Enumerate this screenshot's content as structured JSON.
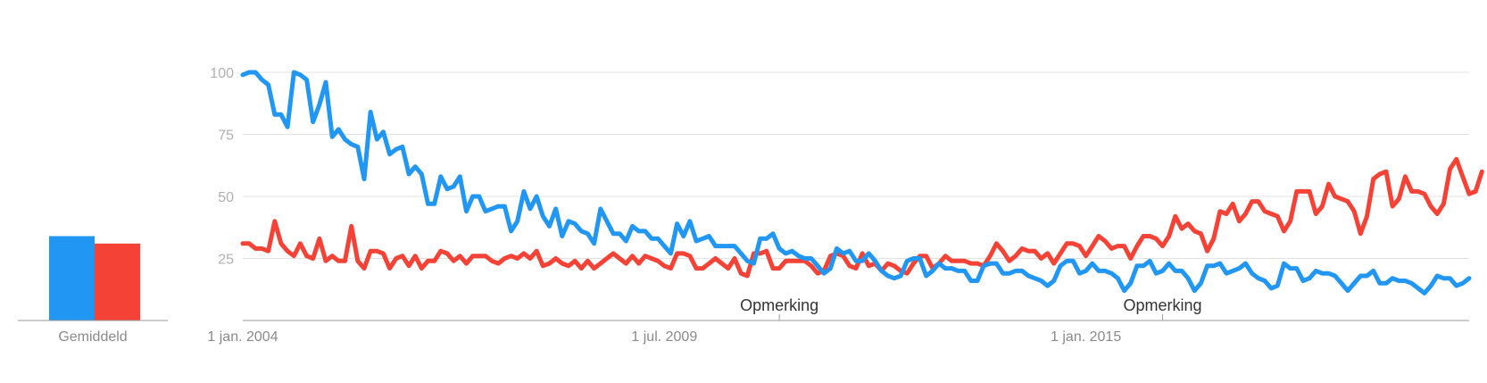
{
  "averages": {
    "label": "Gemiddeld",
    "values": [
      34,
      31
    ]
  },
  "colors": {
    "series1": "#2196f3",
    "series2": "#f44336"
  },
  "annotations": [
    {
      "label": "Opmerking",
      "date": "2011-01"
    },
    {
      "label": "Opmerking",
      "date": "2016-01"
    }
  ],
  "chart_data": {
    "type": "line",
    "x_start": "2004-01",
    "x_step": "month",
    "ylim": [
      0,
      100
    ],
    "yticks": [
      "100",
      "75",
      "50",
      "25"
    ],
    "xticks": [
      {
        "label": "1 jan. 2004",
        "date": "2004-01"
      },
      {
        "label": "1 jul. 2009",
        "date": "2009-07"
      },
      {
        "label": "1 jan. 2015",
        "date": "2015-01"
      }
    ],
    "grid": true,
    "series": [
      {
        "color": "#2196f3",
        "values": [
          99,
          100,
          100,
          97,
          95,
          83,
          83,
          78,
          100,
          99,
          97,
          80,
          87,
          96,
          74,
          77,
          73,
          71,
          70,
          57,
          84,
          73,
          76,
          67,
          69,
          70,
          59,
          62,
          59,
          47,
          47,
          58,
          53,
          54,
          58,
          44,
          50,
          50,
          44,
          45,
          46,
          46,
          36,
          40,
          52,
          45,
          50,
          42,
          38,
          45,
          34,
          40,
          39,
          36,
          35,
          31,
          45,
          40,
          35,
          35,
          32,
          38,
          36,
          36,
          33,
          33,
          30,
          27,
          39,
          34,
          40,
          32,
          33,
          34,
          30,
          30,
          30,
          30,
          27,
          24,
          23,
          33,
          33,
          35,
          29,
          27,
          28,
          26,
          25,
          25,
          22,
          19,
          21,
          29,
          27,
          28,
          24,
          24,
          27,
          24,
          20,
          18,
          17,
          18,
          24,
          25,
          25,
          18,
          20,
          23,
          21,
          21,
          20,
          20,
          16,
          16,
          22,
          23,
          23,
          19,
          19,
          20,
          20,
          18,
          17,
          16,
          14,
          16,
          22,
          24,
          24,
          19,
          20,
          23,
          20,
          20,
          19,
          17,
          12,
          15,
          22,
          22,
          24,
          19,
          20,
          23,
          20,
          20,
          17,
          12,
          15,
          22,
          22,
          23,
          19,
          20,
          21,
          23,
          19,
          17,
          16,
          13,
          14,
          23,
          21,
          21,
          16,
          17,
          20,
          19,
          19,
          18,
          15,
          12,
          15,
          18,
          18,
          20,
          15,
          15,
          17,
          16,
          16,
          15,
          13,
          11,
          14,
          18,
          17,
          17,
          14,
          15,
          17
        ]
      },
      {
        "color": "#f44336",
        "values": [
          31,
          31,
          29,
          29,
          28,
          40,
          31,
          28,
          26,
          31,
          26,
          25,
          33,
          24,
          26,
          24,
          24,
          38,
          24,
          21,
          28,
          28,
          27,
          21,
          25,
          26,
          22,
          26,
          21,
          24,
          24,
          28,
          27,
          24,
          26,
          23,
          26,
          26,
          26,
          24,
          23,
          25,
          26,
          25,
          27,
          25,
          28,
          22,
          23,
          25,
          23,
          22,
          24,
          21,
          24,
          21,
          23,
          25,
          27,
          25,
          23,
          26,
          23,
          26,
          25,
          24,
          22,
          21,
          27,
          27,
          26,
          21,
          21,
          23,
          25,
          23,
          21,
          25,
          19,
          18,
          27,
          27,
          28,
          21,
          21,
          24,
          24,
          24,
          24,
          22,
          19,
          20,
          26,
          27,
          26,
          22,
          21,
          27,
          22,
          23,
          20,
          23,
          22,
          20,
          19,
          23,
          26,
          26,
          21,
          23,
          26,
          24,
          24,
          24,
          23,
          23,
          22,
          26,
          31,
          28,
          24,
          26,
          29,
          28,
          28,
          25,
          27,
          23,
          27,
          31,
          31,
          30,
          26,
          30,
          34,
          32,
          29,
          30,
          30,
          25,
          30,
          34,
          34,
          33,
          30,
          34,
          42,
          37,
          39,
          36,
          35,
          28,
          33,
          44,
          43,
          47,
          40,
          43,
          48,
          48,
          44,
          43,
          42,
          36,
          40,
          52,
          52,
          52,
          43,
          46,
          55,
          50,
          49,
          48,
          44,
          35,
          42,
          57,
          59,
          60,
          46,
          49,
          58,
          52,
          52,
          51,
          46,
          43,
          47,
          61,
          65,
          58,
          51,
          52,
          60
        ]
      }
    ]
  }
}
